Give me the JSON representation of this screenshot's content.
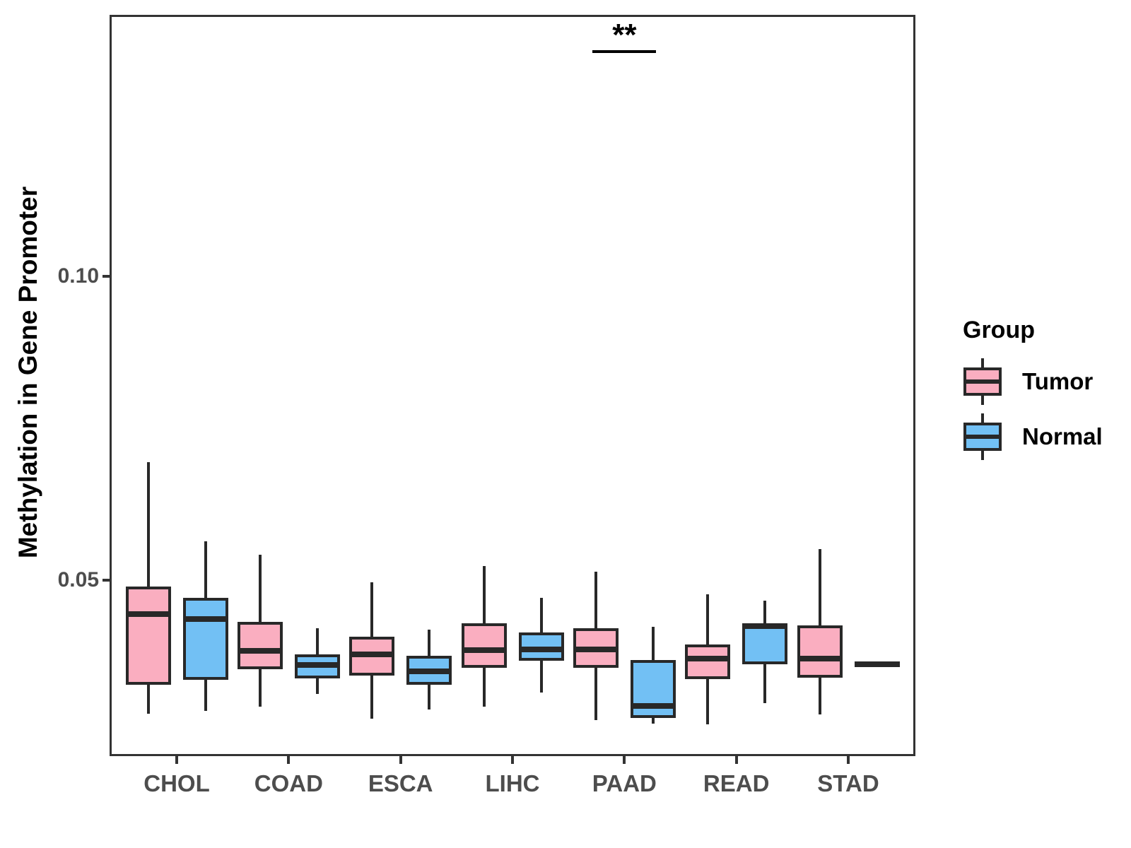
{
  "chart_data": {
    "type": "boxplot",
    "title": "",
    "xlabel": "",
    "ylabel": "Methylation in Gene Promoter",
    "categories": [
      "CHOL",
      "COAD",
      "ESCA",
      "LIHC",
      "PAAD",
      "READ",
      "STAD"
    ],
    "ylim": [
      0.021,
      0.143
    ],
    "yticks": [
      {
        "value": 0.05,
        "label": "0.05"
      },
      {
        "value": 0.1,
        "label": "0.10"
      }
    ],
    "grid": false,
    "legend": {
      "title": "Group",
      "position": "right",
      "entries": [
        {
          "label": "Tumor",
          "color": "#FAAEC0"
        },
        {
          "label": "Normal",
          "color": "#72C0F4"
        }
      ]
    },
    "annotations": [
      {
        "type": "significance-bar",
        "text": "**",
        "category": "PAAD"
      }
    ],
    "series": [
      {
        "name": "Tumor",
        "color": "#FAAEC0",
        "boxes": [
          {
            "category": "CHOL",
            "whisker_low": 0.028,
            "q1": 0.0327,
            "median": 0.0444,
            "q3": 0.0489,
            "whisker_high": 0.0694
          },
          {
            "category": "COAD",
            "whisker_low": 0.0291,
            "q1": 0.0353,
            "median": 0.0383,
            "q3": 0.0431,
            "whisker_high": 0.0542
          },
          {
            "category": "ESCA",
            "whisker_low": 0.0272,
            "q1": 0.0343,
            "median": 0.0378,
            "q3": 0.0407,
            "whisker_high": 0.0496
          },
          {
            "category": "LIHC",
            "whisker_low": 0.0291,
            "q1": 0.0355,
            "median": 0.0385,
            "q3": 0.0429,
            "whisker_high": 0.0523
          },
          {
            "category": "PAAD",
            "whisker_low": 0.0269,
            "q1": 0.0355,
            "median": 0.0386,
            "q3": 0.042,
            "whisker_high": 0.0513
          },
          {
            "category": "READ",
            "whisker_low": 0.0262,
            "q1": 0.0337,
            "median": 0.037,
            "q3": 0.0394,
            "whisker_high": 0.0476
          },
          {
            "category": "STAD",
            "whisker_low": 0.0279,
            "q1": 0.0339,
            "median": 0.037,
            "q3": 0.0425,
            "whisker_high": 0.0551
          }
        ]
      },
      {
        "name": "Normal",
        "color": "#72C0F4",
        "boxes": [
          {
            "category": "CHOL",
            "whisker_low": 0.0284,
            "q1": 0.0336,
            "median": 0.0436,
            "q3": 0.0471,
            "whisker_high": 0.0563
          },
          {
            "category": "COAD",
            "whisker_low": 0.0312,
            "q1": 0.0338,
            "median": 0.036,
            "q3": 0.0377,
            "whisker_high": 0.0421
          },
          {
            "category": "ESCA",
            "whisker_low": 0.0287,
            "q1": 0.0328,
            "median": 0.0349,
            "q3": 0.0375,
            "whisker_high": 0.0418
          },
          {
            "category": "LIHC",
            "whisker_low": 0.0315,
            "q1": 0.0367,
            "median": 0.0386,
            "q3": 0.0413,
            "whisker_high": 0.047
          },
          {
            "category": "PAAD",
            "whisker_low": 0.0264,
            "q1": 0.0273,
            "median": 0.0292,
            "q3": 0.0368,
            "whisker_high": 0.0423
          },
          {
            "category": "READ",
            "whisker_low": 0.0297,
            "q1": 0.0361,
            "median": 0.0424,
            "q3": 0.0426,
            "whisker_high": 0.0466
          },
          {
            "category": "STAD",
            "whisker_low": 0.0361,
            "q1": 0.0361,
            "median": 0.0361,
            "q3": 0.0361,
            "whisker_high": 0.0361
          }
        ]
      }
    ],
    "colors": {
      "tumor_fill": "#FAAEC0",
      "normal_fill": "#72C0F4",
      "box_outline": "#282828",
      "panel_border": "#333333",
      "tick_label": "#4D4D4D",
      "axis_title": "#000000",
      "annotation": "#000000"
    }
  }
}
